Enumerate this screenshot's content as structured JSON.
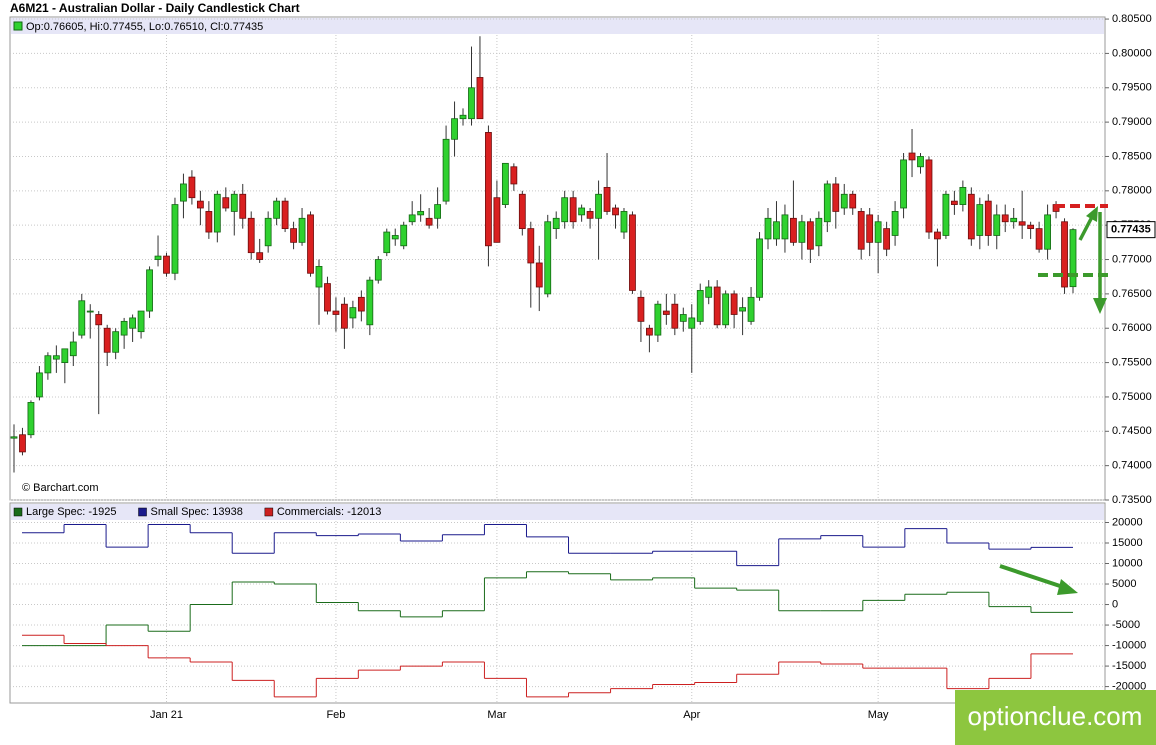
{
  "chart_data": [
    {
      "type": "candlestick",
      "title": "A6M21 - Australian Dollar - Daily Candlestick Chart",
      "info": "Op:0.76605, Hi:0.77455, Lo:0.76510, Cl:0.77435",
      "credit": "© Barchart.com",
      "up_color": "#2fd12f",
      "down_color": "#d92020",
      "categories": [
        null,
        null,
        null,
        null,
        null,
        null,
        null,
        null,
        null,
        null,
        null,
        null,
        null,
        null,
        null,
        null,
        null,
        null,
        "Jan 21",
        null,
        null,
        null,
        null,
        null,
        null,
        null,
        null,
        null,
        null,
        null,
        null,
        null,
        null,
        null,
        null,
        null,
        null,
        null,
        "Feb",
        null,
        null,
        null,
        null,
        null,
        null,
        null,
        null,
        null,
        null,
        null,
        null,
        null,
        null,
        null,
        null,
        null,
        null,
        "Mar",
        null,
        null,
        null,
        null,
        null,
        null,
        null,
        null,
        null,
        null,
        null,
        null,
        null,
        null,
        null,
        null,
        null,
        null,
        null,
        null,
        null,
        null,
        "Apr",
        null,
        null,
        null,
        null,
        null,
        null,
        null,
        null,
        null,
        null,
        null,
        null,
        null,
        null,
        null,
        null,
        null,
        null,
        null,
        null,
        null,
        "May",
        null,
        null,
        null,
        null,
        null,
        null,
        null,
        null,
        null,
        null,
        null,
        null,
        null,
        null,
        null,
        null,
        null,
        null,
        null,
        null,
        null,
        null,
        null
      ],
      "open": [
        0.744,
        0.7445,
        0.7445,
        0.75,
        0.7535,
        0.7555,
        0.755,
        0.756,
        0.759,
        0.7625,
        0.762,
        0.76,
        0.7565,
        0.759,
        0.76,
        0.7595,
        0.7625,
        0.77,
        0.7705,
        0.768,
        0.7785,
        0.782,
        0.7785,
        0.777,
        0.774,
        0.779,
        0.777,
        0.7795,
        0.776,
        0.771,
        0.772,
        0.776,
        0.7785,
        0.7745,
        0.7725,
        0.7765,
        0.766,
        0.7665,
        0.7625,
        0.7635,
        0.7615,
        0.7645,
        0.7605,
        0.767,
        0.771,
        0.773,
        0.772,
        0.7755,
        0.7765,
        0.776,
        0.776,
        0.7785,
        0.7875,
        0.7905,
        0.7905,
        0.7965,
        0.7885,
        0.779,
        0.778,
        0.7835,
        0.7795,
        0.7745,
        0.7695,
        0.765,
        0.7745,
        0.7755,
        0.779,
        0.7765,
        0.777,
        0.776,
        0.7805,
        0.7775,
        0.774,
        0.7765,
        0.7645,
        0.76,
        0.759,
        0.7625,
        0.7635,
        0.761,
        0.76,
        0.761,
        0.7645,
        0.766,
        0.7605,
        0.765,
        0.7625,
        0.761,
        0.7645,
        0.773,
        0.773,
        0.773,
        0.776,
        0.7725,
        0.7755,
        0.772,
        0.7755,
        0.781,
        0.7775,
        0.7795,
        0.777,
        0.7765,
        0.7725,
        0.7745,
        0.7735,
        0.7775,
        0.7855,
        0.7835,
        0.7845,
        0.774,
        0.7735,
        0.7785,
        0.778,
        0.7795,
        0.7735,
        0.7785,
        0.7735,
        0.7765,
        0.7755,
        0.7755,
        0.775,
        0.7745,
        0.7715,
        0.778,
        0.7755,
        0.76605
      ],
      "high": [
        0.746,
        0.7455,
        0.7495,
        0.7545,
        0.7565,
        0.7575,
        0.757,
        0.7595,
        0.765,
        0.7635,
        0.7625,
        0.7605,
        0.76,
        0.7615,
        0.762,
        0.7625,
        0.769,
        0.7735,
        0.771,
        0.779,
        0.7825,
        0.783,
        0.78,
        0.7785,
        0.78,
        0.7805,
        0.78,
        0.781,
        0.777,
        0.773,
        0.777,
        0.779,
        0.779,
        0.7755,
        0.7775,
        0.777,
        0.77,
        0.7675,
        0.7645,
        0.7645,
        0.764,
        0.7655,
        0.7675,
        0.7705,
        0.7745,
        0.7745,
        0.7755,
        0.7785,
        0.7795,
        0.7775,
        0.7805,
        0.7895,
        0.793,
        0.792,
        0.801,
        0.8025,
        0.7895,
        0.7815,
        0.784,
        0.784,
        0.78,
        0.7755,
        0.772,
        0.7765,
        0.777,
        0.78,
        0.78,
        0.778,
        0.7775,
        0.7815,
        0.7855,
        0.778,
        0.7775,
        0.777,
        0.7655,
        0.7605,
        0.764,
        0.765,
        0.765,
        0.763,
        0.7635,
        0.7665,
        0.767,
        0.767,
        0.7655,
        0.7655,
        0.7645,
        0.766,
        0.774,
        0.7775,
        0.7785,
        0.778,
        0.7815,
        0.7765,
        0.776,
        0.777,
        0.7815,
        0.782,
        0.781,
        0.78,
        0.7775,
        0.7775,
        0.7765,
        0.7755,
        0.7785,
        0.7855,
        0.789,
        0.7855,
        0.785,
        0.7745,
        0.78,
        0.78,
        0.7815,
        0.7805,
        0.779,
        0.7795,
        0.778,
        0.778,
        0.7775,
        0.78,
        0.7755,
        0.7755,
        0.778,
        0.7785,
        0.776,
        0.77455
      ],
      "low": [
        0.739,
        0.7415,
        0.744,
        0.7495,
        0.7525,
        0.7535,
        0.752,
        0.7545,
        0.7585,
        0.7585,
        0.7475,
        0.7545,
        0.7555,
        0.757,
        0.758,
        0.7585,
        0.7615,
        0.769,
        0.7675,
        0.767,
        0.776,
        0.778,
        0.775,
        0.773,
        0.7725,
        0.777,
        0.7735,
        0.7745,
        0.77,
        0.7695,
        0.771,
        0.775,
        0.774,
        0.7715,
        0.772,
        0.7675,
        0.7605,
        0.762,
        0.7595,
        0.757,
        0.76,
        0.761,
        0.759,
        0.7665,
        0.7705,
        0.772,
        0.7715,
        0.775,
        0.7755,
        0.7745,
        0.7745,
        0.778,
        0.785,
        0.7895,
        0.7895,
        0.7905,
        0.769,
        0.7725,
        0.7775,
        0.78,
        0.7735,
        0.763,
        0.7625,
        0.7645,
        0.773,
        0.7745,
        0.7745,
        0.7755,
        0.7745,
        0.77,
        0.7765,
        0.7745,
        0.773,
        0.765,
        0.758,
        0.7565,
        0.758,
        0.7605,
        0.759,
        0.7595,
        0.7535,
        0.7605,
        0.7635,
        0.76,
        0.76,
        0.76,
        0.759,
        0.7605,
        0.764,
        0.7715,
        0.772,
        0.771,
        0.772,
        0.77,
        0.7695,
        0.7705,
        0.774,
        0.7745,
        0.7765,
        0.7765,
        0.77,
        0.7705,
        0.768,
        0.7705,
        0.772,
        0.776,
        0.782,
        0.7825,
        0.773,
        0.769,
        0.773,
        0.7765,
        0.777,
        0.772,
        0.7715,
        0.772,
        0.7715,
        0.774,
        0.7745,
        0.773,
        0.773,
        0.771,
        0.77,
        0.776,
        0.765,
        0.7651
      ],
      "close": [
        0.7442,
        0.742,
        0.7492,
        0.7535,
        0.756,
        0.756,
        0.757,
        0.758,
        0.764,
        0.7625,
        0.7605,
        0.7565,
        0.7595,
        0.761,
        0.7615,
        0.7625,
        0.7685,
        0.7705,
        0.768,
        0.778,
        0.781,
        0.779,
        0.7775,
        0.774,
        0.7795,
        0.7775,
        0.7795,
        0.776,
        0.771,
        0.77,
        0.776,
        0.7785,
        0.7745,
        0.7725,
        0.776,
        0.768,
        0.769,
        0.7625,
        0.762,
        0.76,
        0.763,
        0.7625,
        0.767,
        0.77,
        0.774,
        0.7735,
        0.775,
        0.7765,
        0.777,
        0.775,
        0.778,
        0.7875,
        0.7905,
        0.791,
        0.795,
        0.7905,
        0.772,
        0.7725,
        0.784,
        0.781,
        0.7745,
        0.7695,
        0.766,
        0.7755,
        0.776,
        0.779,
        0.7755,
        0.7775,
        0.776,
        0.7795,
        0.777,
        0.7765,
        0.777,
        0.7655,
        0.761,
        0.759,
        0.7635,
        0.762,
        0.76,
        0.762,
        0.7615,
        0.7655,
        0.766,
        0.7605,
        0.765,
        0.762,
        0.763,
        0.7645,
        0.773,
        0.776,
        0.7755,
        0.7765,
        0.7725,
        0.7755,
        0.7715,
        0.776,
        0.781,
        0.777,
        0.7795,
        0.7775,
        0.7715,
        0.7725,
        0.7755,
        0.7715,
        0.777,
        0.7845,
        0.7845,
        0.785,
        0.774,
        0.773,
        0.7795,
        0.778,
        0.7805,
        0.773,
        0.778,
        0.7735,
        0.7765,
        0.7755,
        0.776,
        0.775,
        0.7745,
        0.7715,
        0.7765,
        0.777,
        0.766,
        0.77435
      ],
      "ylim": [
        0.735,
        0.8053
      ],
      "yticks": [
        {
          "value": 0.735,
          "label": "0.73500"
        },
        {
          "value": 0.74,
          "label": "0.74000"
        },
        {
          "value": 0.745,
          "label": "0.74500"
        },
        {
          "value": 0.75,
          "label": "0.75000"
        },
        {
          "value": 0.755,
          "label": "0.75500"
        },
        {
          "value": 0.76,
          "label": "0.76000"
        },
        {
          "value": 0.765,
          "label": "0.76500"
        },
        {
          "value": 0.77,
          "label": "0.77000"
        },
        {
          "value": 0.775,
          "label": "0.77500"
        },
        {
          "value": 0.78,
          "label": "0.78000"
        },
        {
          "value": 0.785,
          "label": "0.78500"
        },
        {
          "value": 0.79,
          "label": "0.79000"
        },
        {
          "value": 0.795,
          "label": "0.79500"
        },
        {
          "value": 0.8,
          "label": "0.80000"
        },
        {
          "value": 0.805,
          "label": "0.80500"
        }
      ],
      "grid": true
    },
    {
      "type": "step",
      "categories": [
        null,
        null,
        null,
        null,
        null,
        null,
        null,
        null,
        null,
        null,
        null,
        null,
        null,
        null,
        null,
        null,
        null,
        null,
        null,
        null,
        null,
        null,
        null,
        null,
        null
      ],
      "series": [
        {
          "name": "Large Spec: -1925",
          "color": "#1a6b1a",
          "values": [
            -10000,
            -10000,
            -5000,
            -6500,
            0,
            5500,
            5000,
            500,
            -1500,
            -3000,
            -1500,
            6500,
            8000,
            7500,
            6000,
            6500,
            4000,
            3500,
            -1500,
            -1500,
            1000,
            2500,
            3000,
            -500,
            -1925
          ]
        },
        {
          "name": "Small Spec: 13938",
          "color": "#1a1a8c",
          "values": [
            17500,
            19500,
            14000,
            19500,
            17500,
            12500,
            17500,
            16800,
            17200,
            15500,
            17000,
            19500,
            16500,
            12500,
            12500,
            13000,
            13000,
            9500,
            16000,
            16800,
            14000,
            18500,
            15000,
            13500,
            13938
          ]
        },
        {
          "name": "Commercials: -12013",
          "color": "#cc2020",
          "values": [
            -7500,
            -9500,
            -10000,
            -13000,
            -14000,
            -18500,
            -22500,
            -18000,
            -16000,
            -15000,
            -14000,
            -18000,
            -22500,
            -21500,
            -20500,
            -19500,
            -19000,
            -17000,
            -14000,
            -14500,
            -15500,
            -15500,
            -20500,
            -18000,
            -12013
          ]
        }
      ],
      "ylim": [
        -24000,
        24750
      ],
      "yticks": [
        -20000,
        -15000,
        -10000,
        -5000,
        0,
        5000,
        10000,
        15000,
        20000
      ],
      "grid": true
    }
  ],
  "watermark": "optionclue.com"
}
